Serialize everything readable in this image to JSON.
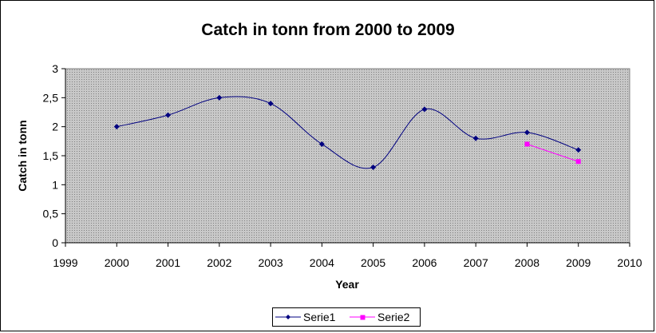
{
  "chart_data": {
    "type": "line",
    "title": "Catch in tonn from 2000 to 2009",
    "xlabel": "Year",
    "ylabel": "Catch in tonn",
    "xlim": [
      1999,
      2010
    ],
    "ylim": [
      0,
      3
    ],
    "x_ticks": [
      "1999",
      "2000",
      "2001",
      "2002",
      "2003",
      "2004",
      "2005",
      "2006",
      "2007",
      "2008",
      "2009",
      "2010"
    ],
    "y_ticks": [
      "0",
      "0,5",
      "1",
      "1,5",
      "2",
      "2,5",
      "3"
    ],
    "grid": false,
    "legend_position": "bottom",
    "series": [
      {
        "name": "Serie1",
        "color": "#000080",
        "marker": "diamond",
        "smooth": true,
        "x": [
          2000,
          2001,
          2002,
          2003,
          2004,
          2005,
          2006,
          2007,
          2008,
          2009
        ],
        "y": [
          2.0,
          2.2,
          2.5,
          2.4,
          1.7,
          1.3,
          2.3,
          1.8,
          1.9,
          1.6
        ]
      },
      {
        "name": "Serie2",
        "color": "#ff00ff",
        "marker": "square",
        "smooth": false,
        "x": [
          2008,
          2009
        ],
        "y": [
          1.7,
          1.4
        ]
      }
    ]
  }
}
